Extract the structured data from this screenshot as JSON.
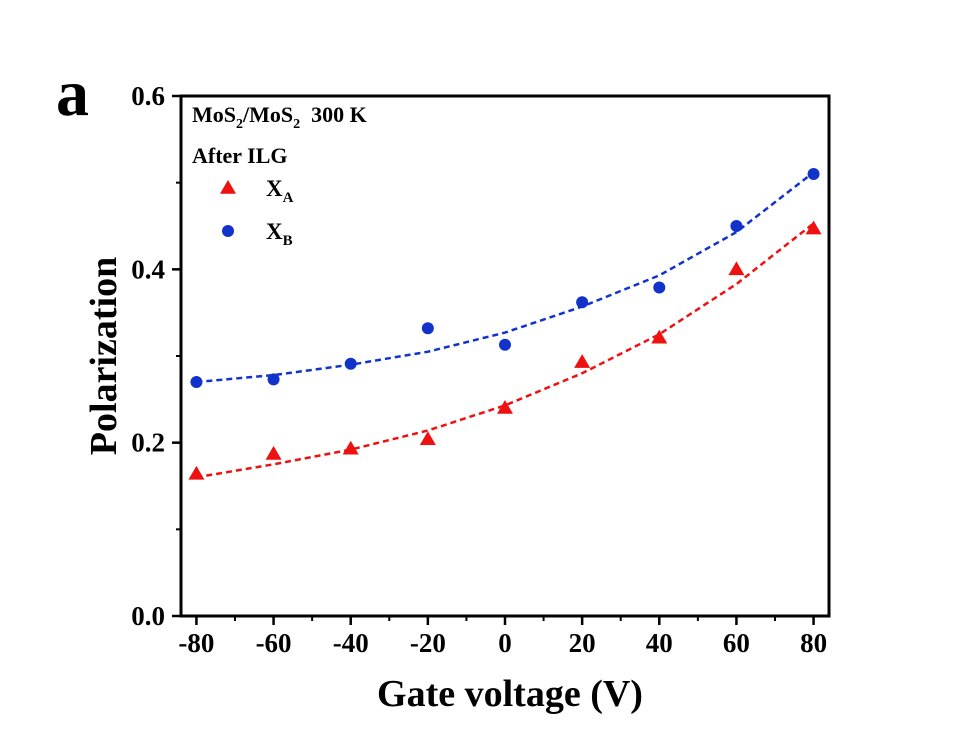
{
  "panel_label": "a",
  "chart_data": {
    "type": "scatter",
    "xlabel": "Gate voltage (V)",
    "ylabel": "Polarization",
    "xlim": [
      -84,
      84
    ],
    "ylim": [
      0.0,
      0.6
    ],
    "x_ticks": [
      -80,
      -60,
      -40,
      -20,
      0,
      20,
      40,
      60,
      80
    ],
    "x_tick_labels": [
      "-80",
      "-60",
      "-40",
      "-20",
      "0",
      "20",
      "40",
      "60",
      "80"
    ],
    "y_ticks": [
      0.0,
      0.2,
      0.4,
      0.6
    ],
    "y_tick_labels": [
      "0.0",
      "0.2",
      "0.4",
      "0.6"
    ],
    "grid": false,
    "annotation": {
      "line1": {
        "a": "MoS",
        "a_sub": "2",
        "b": "/MoS",
        "b_sub": "2",
        "c": "300 K"
      },
      "line2": "After ILG"
    },
    "legend_position": "top-left",
    "x": [
      -80,
      -60,
      -40,
      -20,
      0,
      20,
      40,
      60,
      80
    ],
    "series": [
      {
        "name": "X",
        "name_sub": "A",
        "marker": "triangle",
        "color": "#ee1111",
        "values": [
          0.164,
          0.187,
          0.193,
          0.204,
          0.24,
          0.293,
          0.321,
          0.4,
          0.447
        ],
        "fit": [
          0.16,
          0.175,
          0.192,
          0.214,
          0.243,
          0.28,
          0.325,
          0.383,
          0.453
        ]
      },
      {
        "name": "X",
        "name_sub": "B",
        "marker": "circle",
        "color": "#1133cc",
        "values": [
          0.27,
          0.273,
          0.291,
          0.332,
          0.313,
          0.362,
          0.379,
          0.45,
          0.51
        ],
        "fit": [
          0.27,
          0.278,
          0.29,
          0.305,
          0.327,
          0.357,
          0.393,
          0.443,
          0.512
        ]
      }
    ]
  }
}
